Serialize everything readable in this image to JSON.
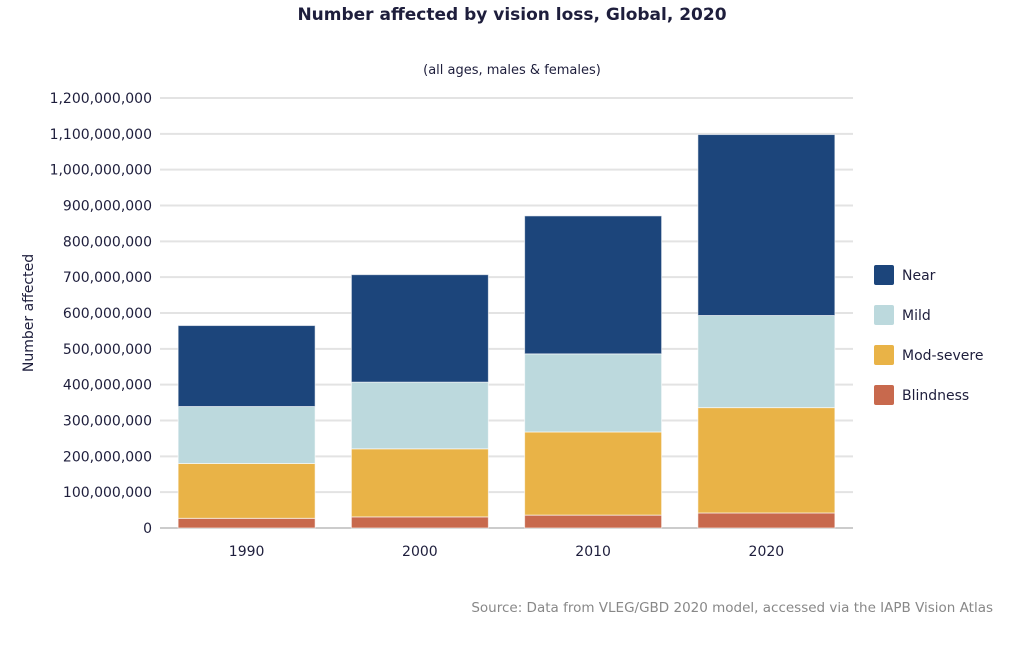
{
  "chart_data": {
    "type": "bar",
    "stacked": true,
    "title": "Number affected by vision loss, Global, 2020",
    "subtitle": "(all ages, males & females)",
    "xlabel": "",
    "ylabel": "Number affected",
    "ylim": [
      0,
      1200000000
    ],
    "yticks": [
      "0",
      "100,000,000",
      "200,000,000",
      "300,000,000",
      "400,000,000",
      "500,000,000",
      "600,000,000",
      "700,000,000",
      "800,000,000",
      "900,000,000",
      "1,000,000,000",
      "1,100,000,000",
      "1,200,000,000"
    ],
    "grid": true,
    "legend_position": "right",
    "categories": [
      "1990",
      "2000",
      "2010",
      "2020"
    ],
    "series": [
      {
        "name": "Blindness",
        "color": "#c8694d",
        "values": [
          27000000,
          31000000,
          36000000,
          42000000
        ]
      },
      {
        "name": "Mod-severe",
        "color": "#e9b347",
        "values": [
          153000000,
          190000000,
          232000000,
          294000000
        ]
      },
      {
        "name": "Mild",
        "color": "#bcd9dd",
        "values": [
          159000000,
          186000000,
          218000000,
          257000000
        ]
      },
      {
        "name": "Near",
        "color": "#1c457b",
        "values": [
          226000000,
          300000000,
          385000000,
          505000000
        ]
      }
    ],
    "source": "Source: Data from VLEG/GBD 2020 model, accessed via the IAPB Vision Atlas"
  }
}
